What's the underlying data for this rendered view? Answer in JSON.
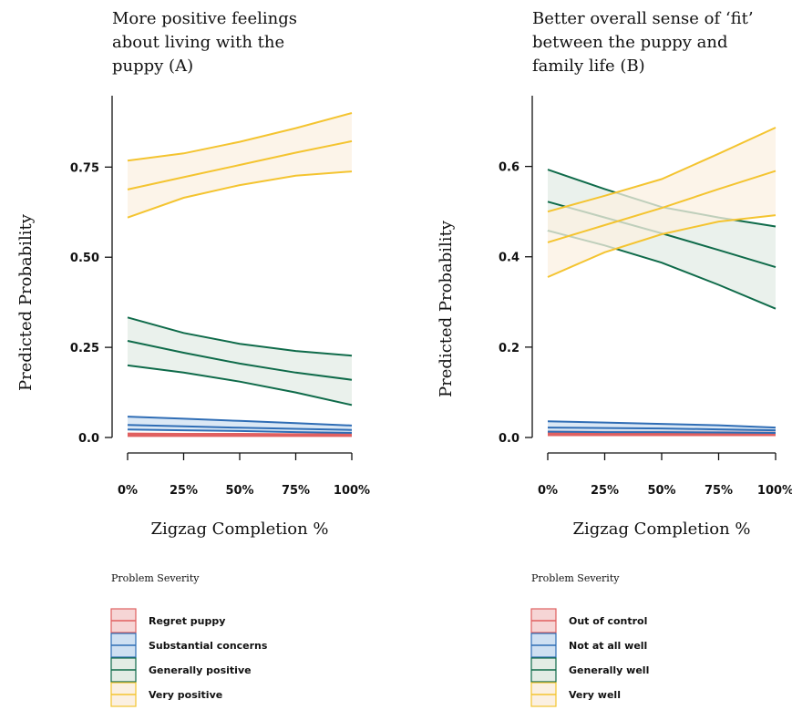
{
  "chart_data": [
    {
      "type": "line",
      "title": [
        "More positive feelings",
        "about living with the",
        "puppy (A)"
      ],
      "xlabel": "Zigzag Completion %",
      "ylabel": "Predicted Probability",
      "x": [
        0,
        0.25,
        0.5,
        0.75,
        1.0
      ],
      "xtick_labels": [
        "0%",
        "25%",
        "50%",
        "75%",
        "100%"
      ],
      "ylim": [
        0,
        0.9
      ],
      "yticks": [
        0,
        0.25,
        0.5,
        0.75
      ],
      "ytick_labels": [
        "0.0",
        "0.25",
        "0.50",
        "0.75"
      ],
      "legend_title": "Problem Severity",
      "series": [
        {
          "name": "Regret puppy",
          "color": "#e06060",
          "fill": "#f6d5d5",
          "mean": [
            0.007,
            0.007,
            0.006,
            0.006,
            0.006
          ],
          "lower": [
            0.004,
            0.004,
            0.004,
            0.004,
            0.004
          ],
          "upper": [
            0.011,
            0.01,
            0.01,
            0.009,
            0.009
          ]
        },
        {
          "name": "Substantial concerns",
          "color": "#2f6db5",
          "fill": "#cfe0f2",
          "mean": [
            0.035,
            0.031,
            0.027,
            0.024,
            0.021
          ],
          "lower": [
            0.022,
            0.02,
            0.018,
            0.015,
            0.013
          ],
          "upper": [
            0.058,
            0.052,
            0.046,
            0.04,
            0.033
          ]
        },
        {
          "name": "Generally positive",
          "color": "#0f6b4a",
          "fill": "#e3ece5",
          "mean": [
            0.268,
            0.235,
            0.205,
            0.18,
            0.16
          ],
          "lower": [
            0.2,
            0.18,
            0.155,
            0.125,
            0.09
          ],
          "upper": [
            0.333,
            0.29,
            0.26,
            0.24,
            0.227
          ]
        },
        {
          "name": "Very positive",
          "color": "#f4c430",
          "fill": "#fbf0e2",
          "mean": [
            0.688,
            0.722,
            0.756,
            0.79,
            0.822
          ],
          "lower": [
            0.61,
            0.665,
            0.7,
            0.726,
            0.738
          ],
          "upper": [
            0.768,
            0.788,
            0.82,
            0.858,
            0.9
          ]
        }
      ]
    },
    {
      "type": "line",
      "title": [
        "Better overall sense of ‘fit’",
        "between the puppy and",
        "family life (B)"
      ],
      "xlabel": "Zigzag Completion %",
      "ylabel": "Predicted Probability",
      "x": [
        0,
        0.25,
        0.5,
        0.75,
        1.0
      ],
      "xtick_labels": [
        "0%",
        "25%",
        "50%",
        "75%",
        "100%"
      ],
      "ylim": [
        0,
        0.69
      ],
      "yticks": [
        0,
        0.2,
        0.4,
        0.6
      ],
      "ytick_labels": [
        "0.0",
        "0.2",
        "0.4",
        "0.6"
      ],
      "legend_title": "Problem Severity",
      "series": [
        {
          "name": "Out of control",
          "color": "#e06060",
          "fill": "#f6d5d5",
          "mean": [
            0.009,
            0.009,
            0.009,
            0.009,
            0.009
          ],
          "lower": [
            0.005,
            0.005,
            0.005,
            0.005,
            0.005
          ],
          "upper": [
            0.014,
            0.013,
            0.013,
            0.013,
            0.013
          ]
        },
        {
          "name": "Not at all well",
          "color": "#2f6db5",
          "fill": "#cfe0f2",
          "mean": [
            0.022,
            0.021,
            0.02,
            0.018,
            0.016
          ],
          "lower": [
            0.013,
            0.012,
            0.012,
            0.011,
            0.01
          ],
          "upper": [
            0.036,
            0.033,
            0.03,
            0.027,
            0.022
          ]
        },
        {
          "name": "Generally well",
          "color": "#0f6b4a",
          "fill": "#e3ece5",
          "mean": [
            0.522,
            0.487,
            0.452,
            0.415,
            0.377
          ],
          "lower": [
            0.458,
            0.425,
            0.387,
            0.338,
            0.285
          ],
          "upper": [
            0.593,
            0.55,
            0.51,
            0.487,
            0.467
          ]
        },
        {
          "name": "Very well",
          "color": "#f4c430",
          "fill": "#fbf0e2",
          "mean": [
            0.432,
            0.47,
            0.508,
            0.55,
            0.59
          ],
          "lower": [
            0.355,
            0.41,
            0.45,
            0.478,
            0.492
          ],
          "upper": [
            0.5,
            0.535,
            0.572,
            0.628,
            0.686
          ]
        }
      ]
    }
  ]
}
